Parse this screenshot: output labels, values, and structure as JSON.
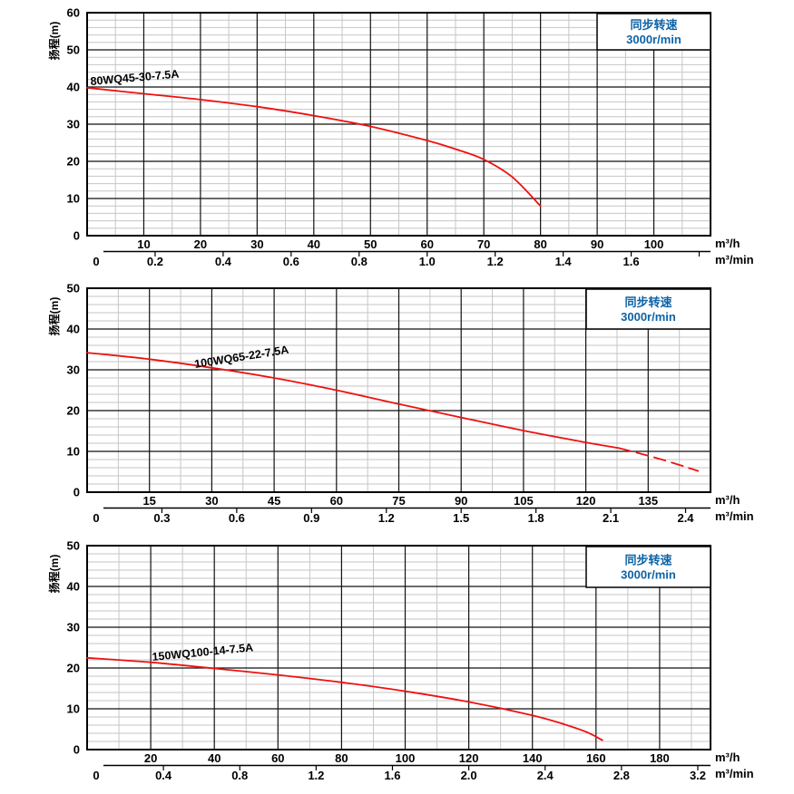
{
  "figure": {
    "ylabel": "扬程(m)",
    "x_unit_primary": "m³/h",
    "x_unit_secondary": "m³/min",
    "speed_note": {
      "line1": "同步转速",
      "line2": "3000r/min"
    },
    "colors": {
      "background": "#ffffff",
      "curve_red": "#ee1111",
      "note_blue": "#0e63a5",
      "grid_major": "#111111",
      "grid_minor": "#c6c6c6",
      "text": "#000000"
    }
  },
  "chart_data": [
    {
      "type": "line",
      "title": "80WQ45-30-7.5A",
      "ylabel": "扬程(m)",
      "xlabel_primary": "m³/h",
      "xlabel_secondary": "m³/min",
      "annotation": "同步转速 3000r/min",
      "grid": true,
      "legend_position": "none",
      "ylim": [
        0,
        60
      ],
      "xlim_m3h": [
        0,
        110
      ],
      "y_ticks": [
        "0",
        "10",
        "20",
        "30",
        "40",
        "50",
        "60"
      ],
      "x_ticks_m3h": [
        "10",
        "20",
        "30",
        "40",
        "50",
        "60",
        "70",
        "80",
        "90",
        "100"
      ],
      "x_ticks_m3min": [
        "0",
        "0.2",
        "0.4",
        "0.6",
        "0.8",
        "1.0",
        "1.2",
        "1.4",
        "1.6"
      ],
      "series": [
        {
          "name": "80WQ45-30-7.5A",
          "style": "solid",
          "x": [
            0,
            10,
            20,
            30,
            40,
            50,
            60,
            65,
            70,
            75,
            80
          ],
          "y": [
            39.8,
            38.2,
            36.6,
            34.7,
            32.3,
            29.4,
            25.6,
            23.3,
            20.5,
            15.8,
            8.0
          ]
        }
      ]
    },
    {
      "type": "line",
      "title": "100WQ65-22-7.5A",
      "ylabel": "扬程(m)",
      "xlabel_primary": "m³/h",
      "xlabel_secondary": "m³/min",
      "annotation": "同步转速 3000r/min",
      "grid": true,
      "legend_position": "none",
      "ylim": [
        0,
        50
      ],
      "xlim_m3h": [
        0,
        150
      ],
      "y_ticks": [
        "0",
        "10",
        "20",
        "30",
        "40",
        "50"
      ],
      "x_ticks_m3h": [
        "15",
        "30",
        "45",
        "60",
        "75",
        "90",
        "105",
        "120",
        "135"
      ],
      "x_ticks_m3min": [
        "0",
        "0.3",
        "0.6",
        "0.9",
        "1.2",
        "1.5",
        "1.8",
        "2.1",
        "2.4"
      ],
      "series": [
        {
          "name": "100WQ65-22-7.5A",
          "style": "solid",
          "x": [
            0,
            15,
            30,
            45,
            60,
            75,
            90,
            105,
            120,
            128
          ],
          "y": [
            34.2,
            32.6,
            30.5,
            28.0,
            25.0,
            21.6,
            18.3,
            15.1,
            12.2,
            10.8
          ]
        },
        {
          "name": "100WQ65-22-7.5A (dashed tail)",
          "style": "dashed",
          "x": [
            128,
            138,
            147
          ],
          "y": [
            10.8,
            8.1,
            5.2
          ]
        }
      ]
    },
    {
      "type": "line",
      "title": "150WQ100-14-7.5A",
      "ylabel": "扬程(m)",
      "xlabel_primary": "m³/h",
      "xlabel_secondary": "m³/min",
      "annotation": "同步转速 3000r/min",
      "grid": true,
      "legend_position": "none",
      "ylim": [
        0,
        50
      ],
      "xlim_m3h": [
        0,
        196
      ],
      "y_ticks": [
        "0",
        "10",
        "20",
        "30",
        "40",
        "50"
      ],
      "x_ticks_m3h": [
        "20",
        "40",
        "60",
        "80",
        "100",
        "120",
        "140",
        "160",
        "180"
      ],
      "x_ticks_m3min": [
        "0",
        "0.4",
        "0.8",
        "1.2",
        "1.6",
        "2.0",
        "2.4",
        "2.8",
        "3.2"
      ],
      "series": [
        {
          "name": "150WQ100-14-7.5A",
          "style": "solid",
          "x": [
            0,
            20,
            40,
            60,
            80,
            100,
            120,
            140,
            150,
            157,
            162
          ],
          "y": [
            22.5,
            21.4,
            19.9,
            18.3,
            16.5,
            14.3,
            11.7,
            8.4,
            6.2,
            4.3,
            2.3
          ]
        }
      ]
    }
  ]
}
